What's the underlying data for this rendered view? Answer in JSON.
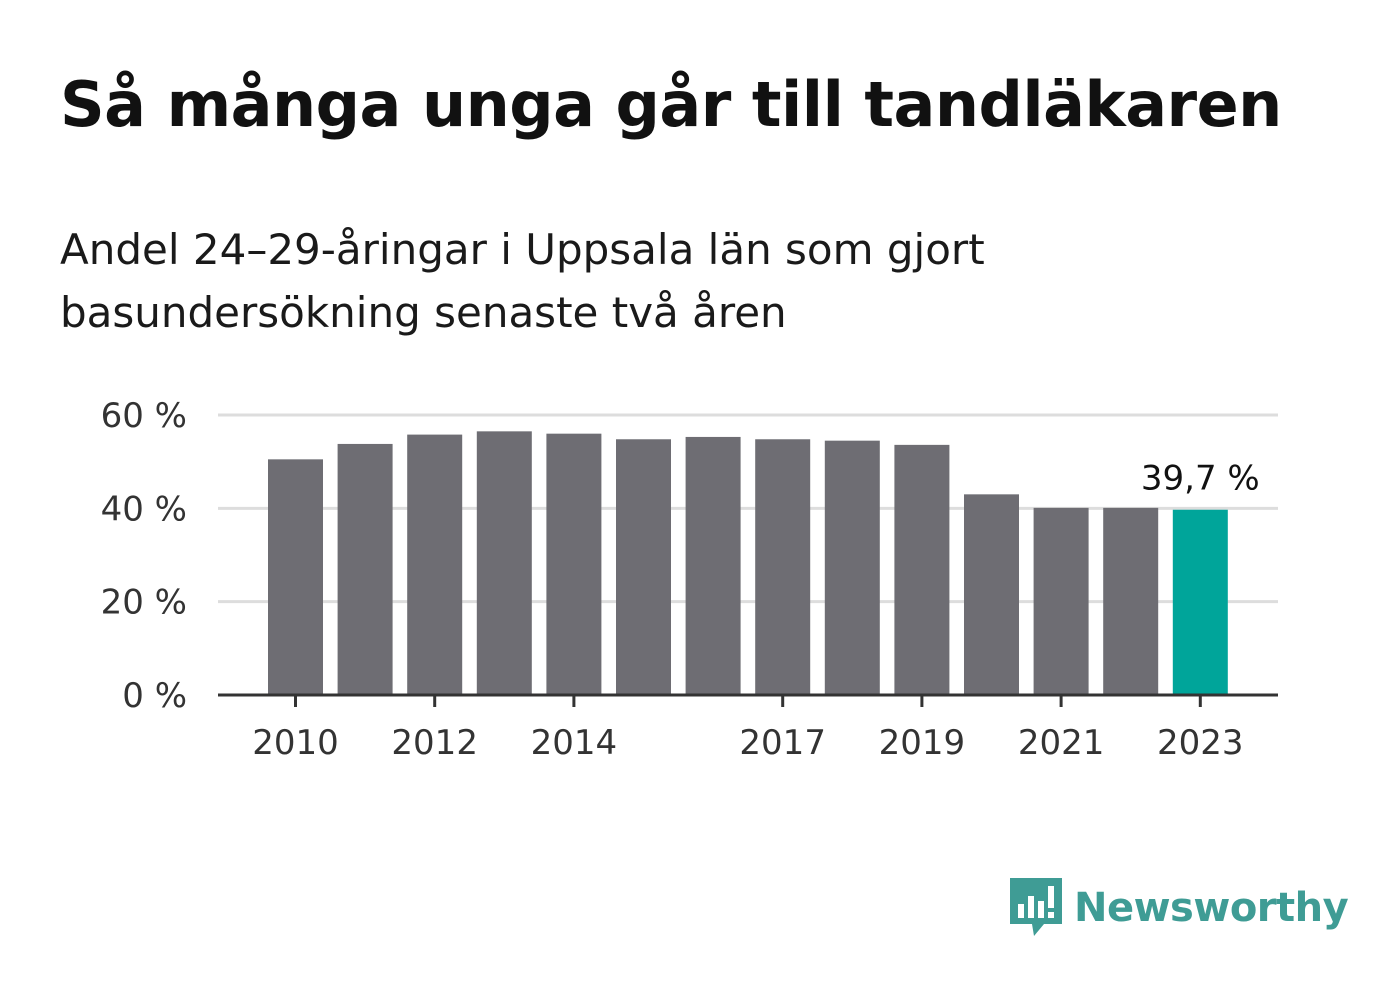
{
  "title": "Så många unga går till tandläkaren",
  "subtitle": "Andel 24–29-åringar i Uppsala län som gjort basundersökning senaste två åren",
  "brand": {
    "name": "Newsworthy",
    "color": "#3f9c95",
    "icon": "newsworthy-logo-icon"
  },
  "colors": {
    "bar": "#6e6d73",
    "highlight": "#00a59a",
    "grid": "#dddddd",
    "axis": "#333333"
  },
  "chart_data": {
    "type": "bar",
    "categories": [
      "2010",
      "2011",
      "2012",
      "2013",
      "2014",
      "2015",
      "2016",
      "2017",
      "2018",
      "2019",
      "2020",
      "2021",
      "2022",
      "2023"
    ],
    "values": [
      50.5,
      53.8,
      55.8,
      56.5,
      56.0,
      54.8,
      55.3,
      54.8,
      54.5,
      53.6,
      43.0,
      40.1,
      40.1,
      39.7
    ],
    "x_tick_labels": [
      "2010",
      "",
      "2012",
      "",
      "2014",
      "",
      "",
      "2017",
      "",
      "2019",
      "",
      "2021",
      "",
      "2023"
    ],
    "y_ticks": [
      0,
      20,
      40,
      60
    ],
    "y_tick_labels": [
      "0 %",
      "20 %",
      "40 %",
      "60 %"
    ],
    "ylim": [
      0,
      60
    ],
    "grid": true,
    "highlight_index": 13,
    "annotation": "39,7 %"
  }
}
